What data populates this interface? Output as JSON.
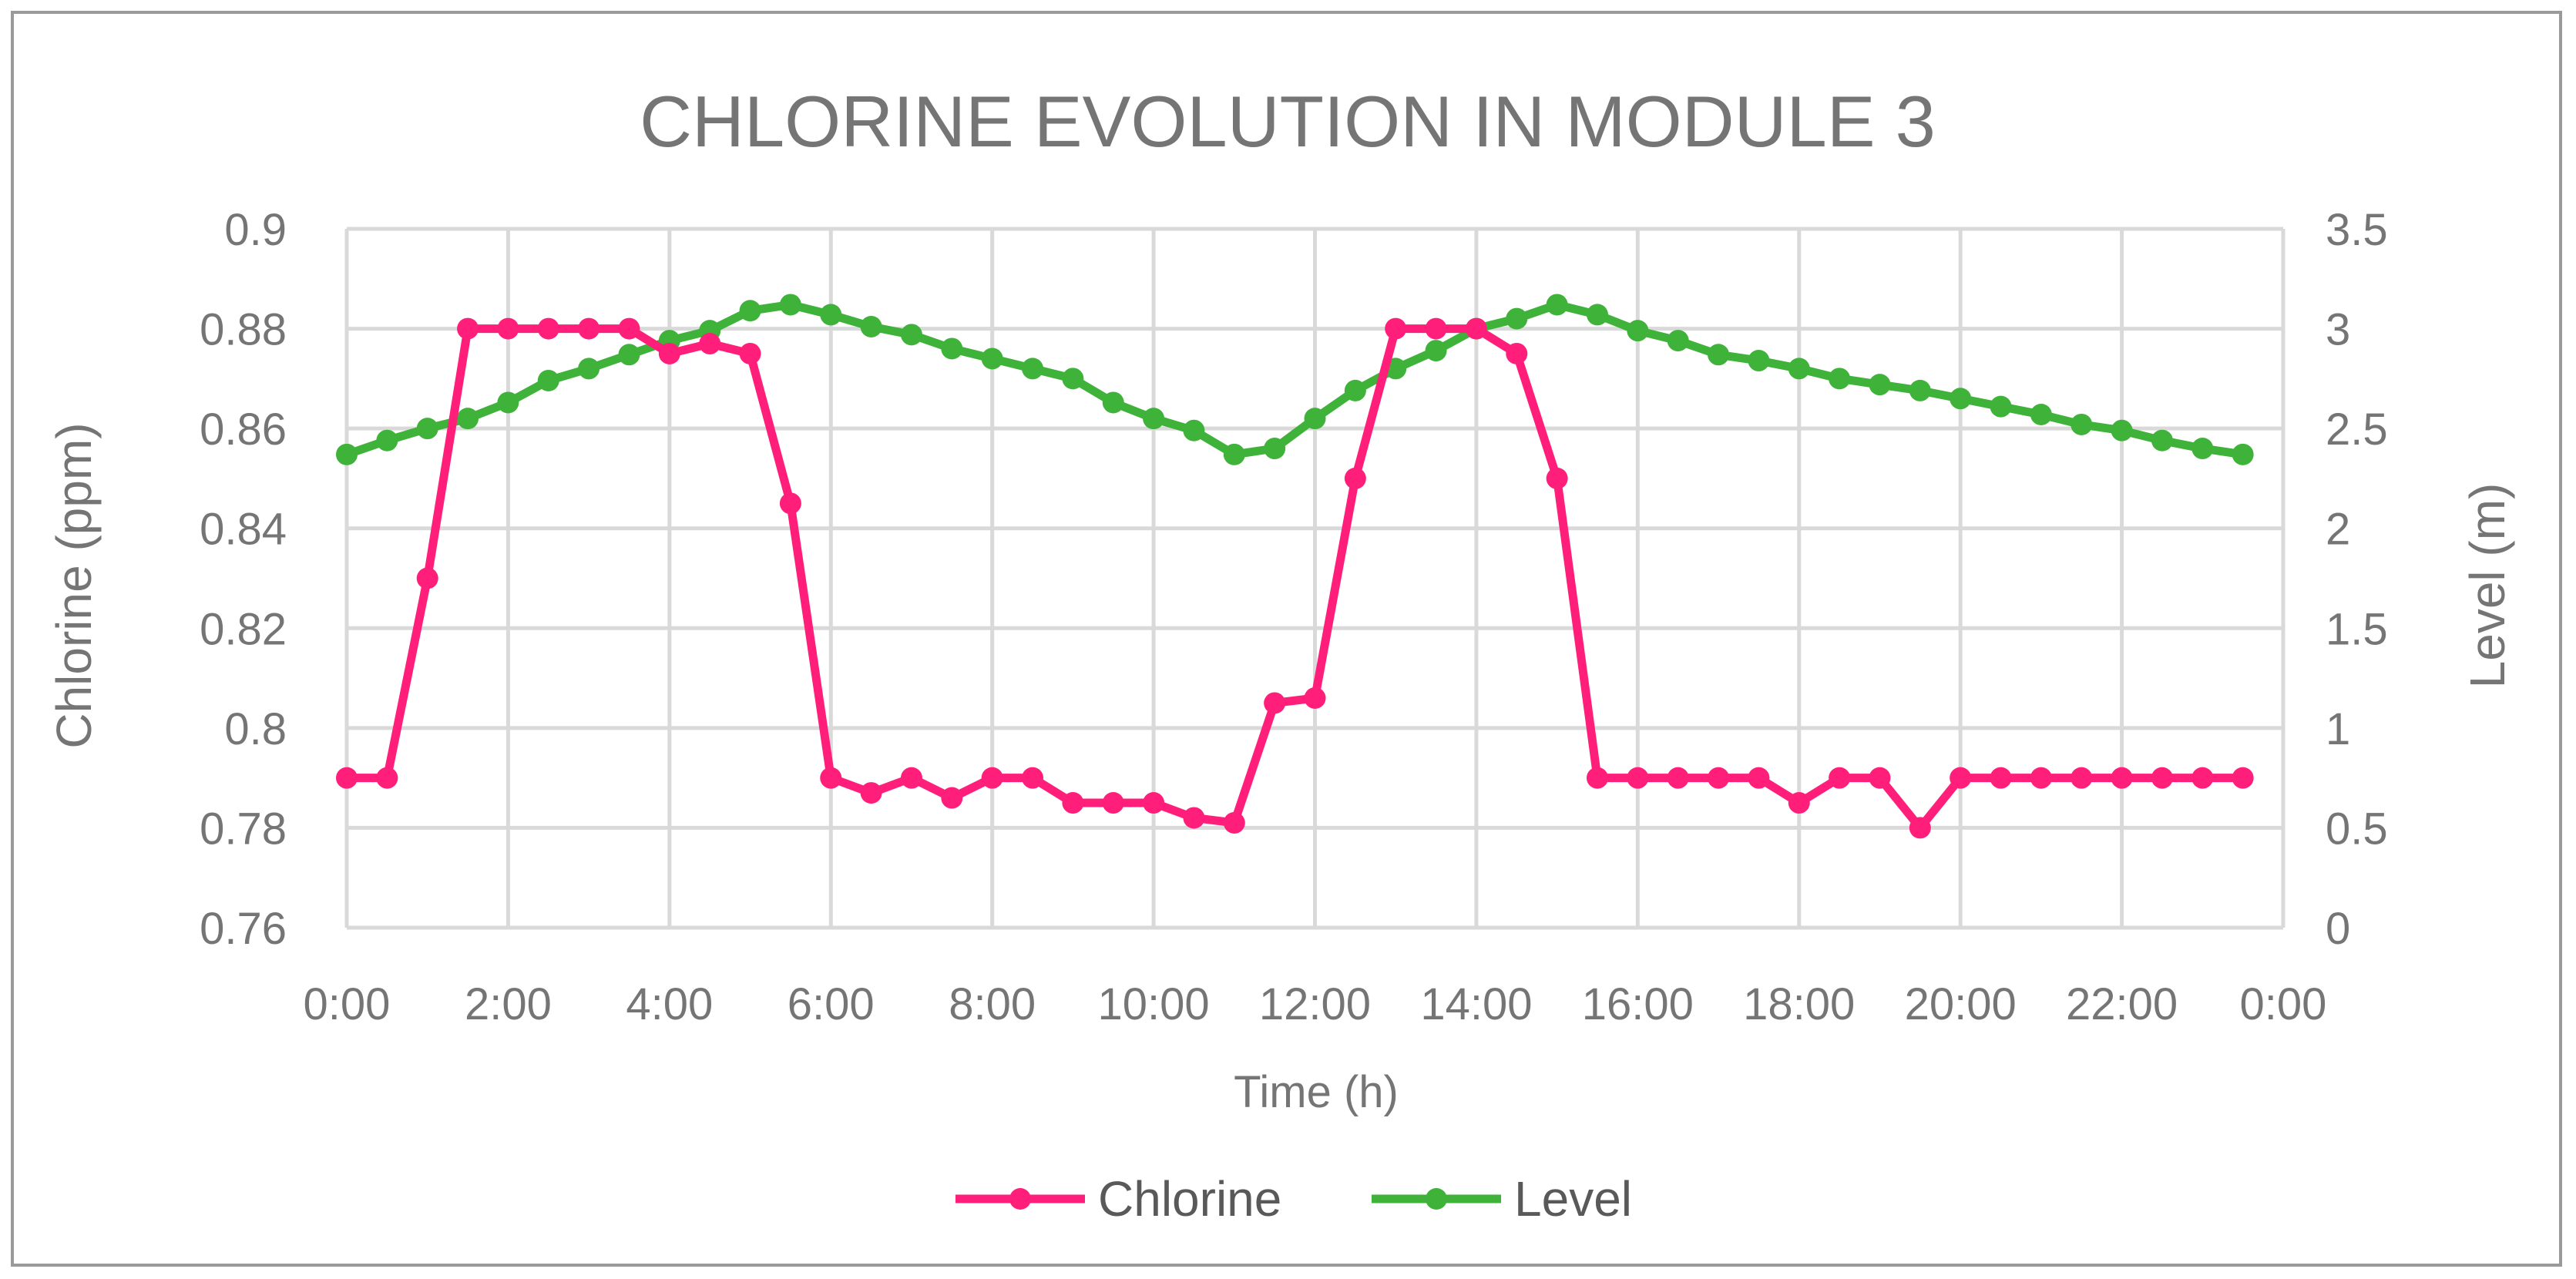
{
  "chart_data": {
    "type": "line",
    "title": "CHLORINE EVOLUTION IN MODULE 3",
    "xlabel": "Time (h)",
    "ylabel": "Chlorine (ppm)",
    "y2label": "Level (m)",
    "ylim": [
      0.76,
      0.9
    ],
    "y2lim": [
      0,
      3.5
    ],
    "yticks": [
      "0.76",
      "0.78",
      "0.8",
      "0.82",
      "0.84",
      "0.86",
      "0.88",
      "0.9"
    ],
    "y2ticks": [
      "0",
      "0.5",
      "1",
      "1.5",
      "2",
      "2.5",
      "3",
      "3.5"
    ],
    "xticks": [
      "0:00",
      "2:00",
      "4:00",
      "6:00",
      "8:00",
      "10:00",
      "12:00",
      "14:00",
      "16:00",
      "18:00",
      "20:00",
      "22:00",
      "0:00"
    ],
    "grid": true,
    "legend_position": "bottom",
    "x": [
      "0:00",
      "0:30",
      "1:00",
      "1:30",
      "2:00",
      "2:30",
      "3:00",
      "3:30",
      "4:00",
      "4:30",
      "5:00",
      "5:30",
      "6:00",
      "6:30",
      "7:00",
      "7:30",
      "8:00",
      "8:30",
      "9:00",
      "9:30",
      "10:00",
      "10:30",
      "11:00",
      "11:30",
      "12:00",
      "12:30",
      "13:00",
      "13:30",
      "14:00",
      "14:30",
      "15:00",
      "15:30",
      "16:00",
      "16:30",
      "17:00",
      "17:30",
      "18:00",
      "18:30",
      "19:00",
      "19:30",
      "20:00",
      "20:30",
      "21:00",
      "21:30",
      "22:00",
      "22:30",
      "23:00",
      "23:30"
    ],
    "series": [
      {
        "name": "Chlorine",
        "axis": "left",
        "color": "#ff1f7a",
        "values": [
          0.79,
          0.79,
          0.83,
          0.88,
          0.88,
          0.88,
          0.88,
          0.88,
          0.875,
          0.877,
          0.875,
          0.845,
          0.79,
          0.787,
          0.79,
          0.786,
          0.79,
          0.79,
          0.785,
          0.785,
          0.785,
          0.782,
          0.781,
          0.805,
          0.806,
          0.85,
          0.88,
          0.88,
          0.88,
          0.875,
          0.85,
          0.79,
          0.79,
          0.79,
          0.79,
          0.79,
          0.785,
          0.79,
          0.79,
          0.78,
          0.79,
          0.79,
          0.79,
          0.79,
          0.79,
          0.79,
          0.79,
          0.79
        ]
      },
      {
        "name": "Level",
        "axis": "right",
        "color": "#3fb23a",
        "values": [
          2.37,
          2.44,
          2.5,
          2.55,
          2.63,
          2.74,
          2.8,
          2.87,
          2.94,
          2.99,
          3.09,
          3.12,
          3.07,
          3.01,
          2.97,
          2.9,
          2.85,
          2.8,
          2.75,
          2.63,
          2.55,
          2.49,
          2.37,
          2.4,
          2.55,
          2.69,
          2.8,
          2.89,
          3,
          3.05,
          3.12,
          3.07,
          2.99,
          2.94,
          2.87,
          2.84,
          2.8,
          2.75,
          2.72,
          2.69,
          2.65,
          2.61,
          2.57,
          2.52,
          2.49,
          2.44,
          2.4,
          2.37
        ]
      }
    ]
  }
}
